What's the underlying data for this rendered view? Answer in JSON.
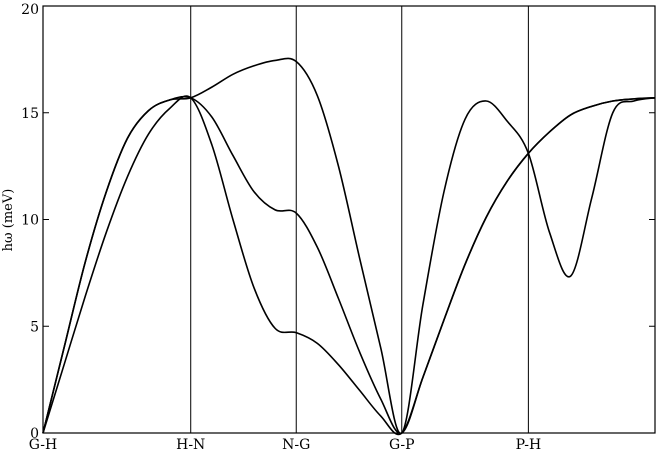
{
  "chart_data": {
    "type": "line",
    "title": "",
    "xlabel": "",
    "ylabel": "hω (meV)",
    "ylim": [
      0,
      20
    ],
    "yticks": [
      0,
      5,
      10,
      15,
      20
    ],
    "grid": false,
    "x_positions": [
      0,
      1.4,
      2.4,
      3.4,
      4.6,
      5.8
    ],
    "sym_labels": [
      {
        "x": 0,
        "label": "G-H"
      },
      {
        "x": 1.4,
        "label": "H-N"
      },
      {
        "x": 2.4,
        "label": "N-G"
      },
      {
        "x": 3.4,
        "label": "G-P"
      },
      {
        "x": 4.6,
        "label": "P-H"
      }
    ],
    "series": [
      {
        "x": [
          0,
          0.2,
          0.4,
          0.6,
          0.8,
          1.0,
          1.2,
          1.4,
          1.6,
          1.8,
          2.0,
          2.2,
          2.4,
          2.6,
          2.8,
          3.0,
          3.2,
          3.4,
          3.6,
          3.8,
          4.0,
          4.2,
          4.4,
          4.6,
          4.8,
          5.0,
          5.2,
          5.4,
          5.6,
          5.8
        ],
        "values": [
          0,
          4.0,
          8.0,
          11.3,
          13.8,
          15.1,
          15.6,
          15.7,
          16.2,
          16.8,
          17.2,
          17.45,
          17.4,
          15.8,
          12.5,
          8.2,
          4.0,
          0,
          6.0,
          11.3,
          14.7,
          15.55,
          14.6,
          13.1,
          9.4,
          7.35,
          11.0,
          15.0,
          15.55,
          15.7
        ]
      },
      {
        "x": [
          0,
          0.2,
          0.4,
          0.6,
          0.8,
          1.0,
          1.2,
          1.4,
          1.6,
          1.8,
          2.0,
          2.2,
          2.4,
          2.6,
          2.8,
          3.0,
          3.2,
          3.4,
          3.6,
          3.8,
          4.0,
          4.2,
          4.4,
          4.6,
          4.8,
          5.0,
          5.2,
          5.4,
          5.6,
          5.8
        ],
        "values": [
          0,
          4.0,
          8.0,
          11.3,
          13.8,
          15.1,
          15.6,
          15.7,
          14.8,
          13.0,
          11.3,
          10.45,
          10.3,
          8.7,
          6.3,
          3.8,
          1.6,
          0,
          2.6,
          5.3,
          7.9,
          10.1,
          11.8,
          13.1,
          14.1,
          14.9,
          15.3,
          15.55,
          15.65,
          15.7
        ]
      },
      {
        "x": [
          0,
          0.2,
          0.4,
          0.6,
          0.8,
          1.0,
          1.2,
          1.4,
          1.6,
          1.8,
          2.0,
          2.2,
          2.4,
          2.6,
          2.8,
          3.0,
          3.2,
          3.4,
          3.6,
          3.8,
          4.0,
          4.2,
          4.4,
          4.6,
          4.8,
          5.0,
          5.2,
          5.4,
          5.6,
          5.8
        ],
        "values": [
          0,
          3.2,
          6.4,
          9.4,
          12.0,
          14.0,
          15.2,
          15.7,
          13.5,
          10.0,
          6.8,
          4.9,
          4.7,
          4.2,
          3.2,
          2.0,
          0.8,
          0,
          2.6,
          5.3,
          7.9,
          10.1,
          11.8,
          13.1,
          14.1,
          14.9,
          15.3,
          15.55,
          15.65,
          15.7
        ]
      }
    ]
  }
}
